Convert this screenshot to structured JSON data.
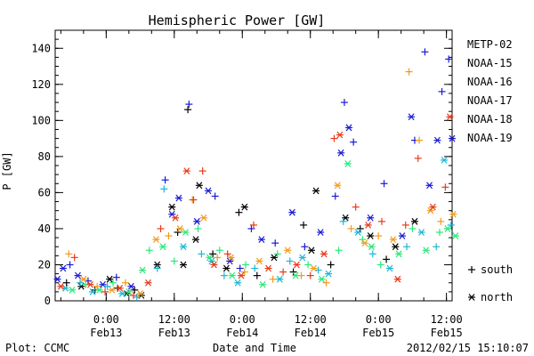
{
  "chart_data": {
    "type": "scatter",
    "title": "Hemispheric Power [GW]",
    "xlabel": "Date and Time",
    "ylabel": "P [GW]",
    "ylim": [
      0,
      150
    ],
    "x_unit": "hours",
    "xlim": [
      -4.5,
      30.5
    ],
    "x_ticks": [
      {
        "value": 0,
        "time": "0:00",
        "date": "Feb13"
      },
      {
        "value": 6,
        "time": "12:00",
        "date": "Feb13"
      },
      {
        "value": 12,
        "time": "0:00",
        "date": "Feb14"
      },
      {
        "value": 18,
        "time": "12:00",
        "date": "Feb14"
      },
      {
        "value": 24,
        "time": "0:00",
        "date": "Feb15"
      },
      {
        "value": 30,
        "time": "12:00",
        "date": "Feb15"
      }
    ],
    "y_ticks": [
      0,
      20,
      40,
      60,
      80,
      100,
      120,
      140
    ],
    "grid": false,
    "legend_position": "right",
    "marker_legend": [
      {
        "symbol": "+",
        "label": "south"
      },
      {
        "symbol": "*",
        "label": "north"
      }
    ],
    "series": [
      {
        "name": "METP-02",
        "color": "#000000",
        "points": [
          {
            "x": -3.5,
            "y": 10,
            "m": "+"
          },
          {
            "x": -2.2,
            "y": 8,
            "m": "*"
          },
          {
            "x": -1,
            "y": 6,
            "m": "+"
          },
          {
            "x": 0.3,
            "y": 12,
            "m": "*"
          },
          {
            "x": 1,
            "y": 7,
            "m": "+"
          },
          {
            "x": 1.8,
            "y": 4,
            "m": "*"
          },
          {
            "x": 2.5,
            "y": 6,
            "m": "+"
          },
          {
            "x": 3.1,
            "y": 3,
            "m": "*"
          },
          {
            "x": 4.5,
            "y": 20,
            "m": "*"
          },
          {
            "x": 5.8,
            "y": 52,
            "m": "*"
          },
          {
            "x": 6.3,
            "y": 38,
            "m": "+"
          },
          {
            "x": 6.8,
            "y": 20,
            "m": "*"
          },
          {
            "x": 7.2,
            "y": 106,
            "m": "+"
          },
          {
            "x": 7.9,
            "y": 34,
            "m": "*"
          },
          {
            "x": 8.2,
            "y": 64,
            "m": "*"
          },
          {
            "x": 9.4,
            "y": 26,
            "m": "+"
          },
          {
            "x": 10.6,
            "y": 18,
            "m": "*"
          },
          {
            "x": 11.7,
            "y": 49,
            "m": "+"
          },
          {
            "x": 12.2,
            "y": 52,
            "m": "*"
          },
          {
            "x": 13.3,
            "y": 14,
            "m": "+"
          },
          {
            "x": 14.8,
            "y": 24,
            "m": "*"
          },
          {
            "x": 16.5,
            "y": 16,
            "m": "+"
          },
          {
            "x": 17.4,
            "y": 42,
            "m": "+"
          },
          {
            "x": 18.1,
            "y": 28,
            "m": "*"
          },
          {
            "x": 18.5,
            "y": 61,
            "m": "*"
          },
          {
            "x": 19.8,
            "y": 20,
            "m": "+"
          },
          {
            "x": 21.1,
            "y": 46,
            "m": "*"
          },
          {
            "x": 22.4,
            "y": 40,
            "m": "+"
          },
          {
            "x": 23.3,
            "y": 36,
            "m": "*"
          },
          {
            "x": 24.7,
            "y": 23,
            "m": "+"
          },
          {
            "x": 25.5,
            "y": 30,
            "m": "*"
          },
          {
            "x": 27.2,
            "y": 44,
            "m": "*"
          }
        ]
      },
      {
        "name": "NOAA-15",
        "color": "#1a1ad6",
        "points": [
          {
            "x": -4.3,
            "y": 12,
            "m": "*"
          },
          {
            "x": -3.8,
            "y": 18,
            "m": "*"
          },
          {
            "x": -3.2,
            "y": 20,
            "m": "+"
          },
          {
            "x": -2.5,
            "y": 14,
            "m": "*"
          },
          {
            "x": -1.6,
            "y": 11,
            "m": "+"
          },
          {
            "x": -0.3,
            "y": 9,
            "m": "*"
          },
          {
            "x": 0.9,
            "y": 13,
            "m": "+"
          },
          {
            "x": 2.2,
            "y": 8,
            "m": "*"
          },
          {
            "x": 5.2,
            "y": 67,
            "m": "+"
          },
          {
            "x": 5.8,
            "y": 48,
            "m": "*"
          },
          {
            "x": 6.4,
            "y": 57,
            "m": "*"
          },
          {
            "x": 7.3,
            "y": 109,
            "m": "+"
          },
          {
            "x": 8,
            "y": 44,
            "m": "*"
          },
          {
            "x": 9,
            "y": 61,
            "m": "*"
          },
          {
            "x": 9.6,
            "y": 58,
            "m": "+"
          },
          {
            "x": 10.9,
            "y": 22,
            "m": "*"
          },
          {
            "x": 11.8,
            "y": 18,
            "m": "+"
          },
          {
            "x": 12.8,
            "y": 40,
            "m": "+"
          },
          {
            "x": 13.7,
            "y": 34,
            "m": "*"
          },
          {
            "x": 14.9,
            "y": 32,
            "m": "+"
          },
          {
            "x": 16.4,
            "y": 49,
            "m": "*"
          },
          {
            "x": 17.5,
            "y": 30,
            "m": "+"
          },
          {
            "x": 18.9,
            "y": 38,
            "m": "*"
          },
          {
            "x": 20.2,
            "y": 58,
            "m": "+"
          },
          {
            "x": 20.7,
            "y": 82,
            "m": "*"
          },
          {
            "x": 21,
            "y": 110,
            "m": "+"
          },
          {
            "x": 21.4,
            "y": 96,
            "m": "*"
          },
          {
            "x": 21.8,
            "y": 88,
            "m": "+"
          },
          {
            "x": 23.3,
            "y": 46,
            "m": "*"
          },
          {
            "x": 24.5,
            "y": 65,
            "m": "+"
          },
          {
            "x": 26.1,
            "y": 36,
            "m": "*"
          },
          {
            "x": 26.9,
            "y": 102,
            "m": "*"
          },
          {
            "x": 27.2,
            "y": 89,
            "m": "+"
          },
          {
            "x": 28.1,
            "y": 138,
            "m": "+"
          },
          {
            "x": 28.5,
            "y": 64,
            "m": "*"
          },
          {
            "x": 29.2,
            "y": 89,
            "m": "*"
          },
          {
            "x": 29.6,
            "y": 116,
            "m": "+"
          },
          {
            "x": 30.2,
            "y": 134,
            "m": "+"
          },
          {
            "x": 30.5,
            "y": 90,
            "m": "*"
          }
        ]
      },
      {
        "name": "NOAA-16",
        "color": "#1ab8d6",
        "points": [
          {
            "x": -3.6,
            "y": 7,
            "m": "*"
          },
          {
            "x": -2.3,
            "y": 10,
            "m": "+"
          },
          {
            "x": -1.2,
            "y": 5,
            "m": "*"
          },
          {
            "x": 0.1,
            "y": 8,
            "m": "+"
          },
          {
            "x": 1.4,
            "y": 4,
            "m": "*"
          },
          {
            "x": 2.7,
            "y": 2,
            "m": "+"
          },
          {
            "x": 4.5,
            "y": 18,
            "m": "+"
          },
          {
            "x": 5.1,
            "y": 62,
            "m": "+"
          },
          {
            "x": 6.8,
            "y": 30,
            "m": "*"
          },
          {
            "x": 8.4,
            "y": 26,
            "m": "+"
          },
          {
            "x": 9.3,
            "y": 22,
            "m": "*"
          },
          {
            "x": 10.4,
            "y": 14,
            "m": "+"
          },
          {
            "x": 11.6,
            "y": 10,
            "m": "*"
          },
          {
            "x": 13.1,
            "y": 18,
            "m": "+"
          },
          {
            "x": 15.3,
            "y": 12,
            "m": "*"
          },
          {
            "x": 16.2,
            "y": 22,
            "m": "+"
          },
          {
            "x": 17.3,
            "y": 24,
            "m": "*"
          },
          {
            "x": 18.7,
            "y": 17,
            "m": "+"
          },
          {
            "x": 19.6,
            "y": 15,
            "m": "*"
          },
          {
            "x": 20.9,
            "y": 44,
            "m": "+"
          },
          {
            "x": 22.2,
            "y": 38,
            "m": "*"
          },
          {
            "x": 23.5,
            "y": 26,
            "m": "+"
          },
          {
            "x": 25,
            "y": 18,
            "m": "*"
          },
          {
            "x": 26.5,
            "y": 30,
            "m": "+"
          },
          {
            "x": 27.8,
            "y": 38,
            "m": "*"
          },
          {
            "x": 29.1,
            "y": 30,
            "m": "+"
          },
          {
            "x": 29.8,
            "y": 78,
            "m": "*"
          },
          {
            "x": 30.4,
            "y": 42,
            "m": "+"
          }
        ]
      },
      {
        "name": "NOAA-17",
        "color": "#2ae87a",
        "points": [
          {
            "x": -3,
            "y": 6,
            "m": "*"
          },
          {
            "x": -1.8,
            "y": 9,
            "m": "+"
          },
          {
            "x": -0.6,
            "y": 6,
            "m": "*"
          },
          {
            "x": 0.6,
            "y": 10,
            "m": "+"
          },
          {
            "x": 2,
            "y": 5,
            "m": "*"
          },
          {
            "x": 3.2,
            "y": 17,
            "m": "*"
          },
          {
            "x": 3.8,
            "y": 28,
            "m": "+"
          },
          {
            "x": 5,
            "y": 30,
            "m": "*"
          },
          {
            "x": 6,
            "y": 22,
            "m": "+"
          },
          {
            "x": 7,
            "y": 38,
            "m": "*"
          },
          {
            "x": 8.1,
            "y": 40,
            "m": "+"
          },
          {
            "x": 9.1,
            "y": 24,
            "m": "*"
          },
          {
            "x": 10,
            "y": 28,
            "m": "+"
          },
          {
            "x": 11.1,
            "y": 14,
            "m": "*"
          },
          {
            "x": 12.3,
            "y": 20,
            "m": "+"
          },
          {
            "x": 13.8,
            "y": 9,
            "m": "*"
          },
          {
            "x": 15.1,
            "y": 26,
            "m": "+"
          },
          {
            "x": 16.7,
            "y": 14,
            "m": "*"
          },
          {
            "x": 17.8,
            "y": 20,
            "m": "+"
          },
          {
            "x": 19,
            "y": 12,
            "m": "*"
          },
          {
            "x": 20.5,
            "y": 28,
            "m": "+"
          },
          {
            "x": 21.3,
            "y": 76,
            "m": "*"
          },
          {
            "x": 22.6,
            "y": 34,
            "m": "+"
          },
          {
            "x": 23.4,
            "y": 30,
            "m": "*"
          },
          {
            "x": 24.2,
            "y": 20,
            "m": "+"
          },
          {
            "x": 25.8,
            "y": 26,
            "m": "*"
          },
          {
            "x": 27,
            "y": 40,
            "m": "+"
          },
          {
            "x": 28.2,
            "y": 28,
            "m": "*"
          },
          {
            "x": 29.4,
            "y": 38,
            "m": "+"
          },
          {
            "x": 30.1,
            "y": 40,
            "m": "*"
          },
          {
            "x": 30.8,
            "y": 36,
            "m": "*"
          }
        ]
      },
      {
        "name": "NOAA-18",
        "color": "#f29a1c",
        "points": [
          {
            "x": -3.3,
            "y": 26,
            "m": "+"
          },
          {
            "x": -2,
            "y": 12,
            "m": "*"
          },
          {
            "x": -0.8,
            "y": 8,
            "m": "+"
          },
          {
            "x": 0.5,
            "y": 6,
            "m": "*"
          },
          {
            "x": 1.7,
            "y": 10,
            "m": "+"
          },
          {
            "x": 3,
            "y": 4,
            "m": "*"
          },
          {
            "x": 4.4,
            "y": 34,
            "m": "*"
          },
          {
            "x": 5.5,
            "y": 36,
            "m": "+"
          },
          {
            "x": 6.5,
            "y": 40,
            "m": "*"
          },
          {
            "x": 7.6,
            "y": 56,
            "m": "+"
          },
          {
            "x": 8.6,
            "y": 46,
            "m": "*"
          },
          {
            "x": 9.8,
            "y": 24,
            "m": "+"
          },
          {
            "x": 11,
            "y": 24,
            "m": "*"
          },
          {
            "x": 12.2,
            "y": 16,
            "m": "+"
          },
          {
            "x": 13.5,
            "y": 22,
            "m": "*"
          },
          {
            "x": 14.7,
            "y": 12,
            "m": "+"
          },
          {
            "x": 16,
            "y": 28,
            "m": "*"
          },
          {
            "x": 17.2,
            "y": 14,
            "m": "+"
          },
          {
            "x": 18.3,
            "y": 18,
            "m": "*"
          },
          {
            "x": 19.4,
            "y": 10,
            "m": "+"
          },
          {
            "x": 20.4,
            "y": 64,
            "m": "*"
          },
          {
            "x": 21.6,
            "y": 40,
            "m": "+"
          },
          {
            "x": 22.8,
            "y": 32,
            "m": "*"
          },
          {
            "x": 24,
            "y": 36,
            "m": "+"
          },
          {
            "x": 25.3,
            "y": 34,
            "m": "*"
          },
          {
            "x": 26.7,
            "y": 127,
            "m": "+"
          },
          {
            "x": 27.6,
            "y": 89,
            "m": "+"
          },
          {
            "x": 28.6,
            "y": 50,
            "m": "*"
          },
          {
            "x": 29.5,
            "y": 44,
            "m": "+"
          },
          {
            "x": 30.6,
            "y": 48,
            "m": "*"
          }
        ]
      },
      {
        "name": "NOAA-19",
        "color": "#e83a1a",
        "points": [
          {
            "x": -4,
            "y": 8,
            "m": "*"
          },
          {
            "x": -2.8,
            "y": 24,
            "m": "+"
          },
          {
            "x": -1.4,
            "y": 9,
            "m": "*"
          },
          {
            "x": -0.1,
            "y": 5,
            "m": "+"
          },
          {
            "x": 1.2,
            "y": 7,
            "m": "*"
          },
          {
            "x": 2.4,
            "y": 3,
            "m": "+"
          },
          {
            "x": 3.7,
            "y": 10,
            "m": "*"
          },
          {
            "x": 4.8,
            "y": 40,
            "m": "+"
          },
          {
            "x": 6.1,
            "y": 46,
            "m": "*"
          },
          {
            "x": 7.1,
            "y": 72,
            "m": "*"
          },
          {
            "x": 7.7,
            "y": 56,
            "m": "+"
          },
          {
            "x": 8.5,
            "y": 72,
            "m": "+"
          },
          {
            "x": 9.5,
            "y": 20,
            "m": "*"
          },
          {
            "x": 10.7,
            "y": 26,
            "m": "+"
          },
          {
            "x": 11.9,
            "y": 14,
            "m": "*"
          },
          {
            "x": 13,
            "y": 42,
            "m": "+"
          },
          {
            "x": 14.3,
            "y": 18,
            "m": "*"
          },
          {
            "x": 15.6,
            "y": 16,
            "m": "+"
          },
          {
            "x": 16.8,
            "y": 20,
            "m": "*"
          },
          {
            "x": 18,
            "y": 14,
            "m": "+"
          },
          {
            "x": 19.2,
            "y": 26,
            "m": "*"
          },
          {
            "x": 20.1,
            "y": 90,
            "m": "+"
          },
          {
            "x": 20.6,
            "y": 92,
            "m": "*"
          },
          {
            "x": 22,
            "y": 52,
            "m": "+"
          },
          {
            "x": 23.1,
            "y": 42,
            "m": "*"
          },
          {
            "x": 24.3,
            "y": 44,
            "m": "+"
          },
          {
            "x": 25.7,
            "y": 12,
            "m": "*"
          },
          {
            "x": 26.4,
            "y": 42,
            "m": "+"
          },
          {
            "x": 27.5,
            "y": 79,
            "m": "+"
          },
          {
            "x": 28.8,
            "y": 52,
            "m": "*"
          },
          {
            "x": 29.9,
            "y": 63,
            "m": "+"
          },
          {
            "x": 30.3,
            "y": 102,
            "m": "*"
          }
        ]
      }
    ]
  },
  "footer": {
    "plot_credit": "Plot: CCMC",
    "timestamp": "2012/02/15 15:10:07"
  }
}
